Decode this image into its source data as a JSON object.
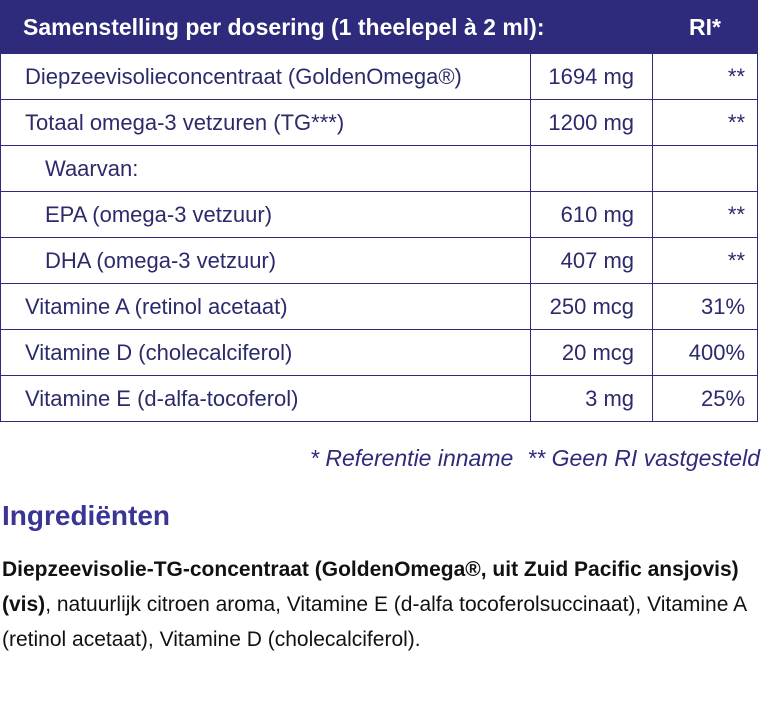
{
  "table": {
    "header": {
      "title": "Samenstelling per dosering (1 theelepel à 2 ml):",
      "ri": "RI*"
    },
    "rows": [
      [
        "Diepzeevisolieconcentraat (GoldenOmega®)",
        "1694 mg",
        "**"
      ],
      [
        "Totaal omega-3 vetzuren (TG***)",
        "1200 mg",
        "**"
      ],
      [
        "Waarvan:"
      ],
      [
        "EPA (omega-3 vetzuur)",
        "610 mg",
        "**"
      ],
      [
        "DHA (omega-3 vetzuur)",
        "407 mg",
        "**"
      ],
      [
        "Vitamine A (retinol acetaat)",
        "250 mcg",
        "31%"
      ],
      [
        "Vitamine D (cholecalciferol)",
        "20 mcg",
        "400%"
      ],
      [
        "Vitamine E (d-alfa-tocoferol)",
        "3 mg",
        "25%"
      ]
    ]
  },
  "footnotes": [
    "* Referentie inname",
    "** Geen RI vastgesteld"
  ],
  "ingredients": {
    "heading": "Ingrediënten",
    "bold": "Diepzeevisolie-TG-concentraat (GoldenOmega®, uit Zuid Pacific ansjovis) (vis)",
    "text": ", natuurlijk citroen aroma, Vitamine E (d-alfa tocoferolsuccinaat), Vitamine A (retinol acetaat), Vitamine D (cholecalciferol)."
  }
}
